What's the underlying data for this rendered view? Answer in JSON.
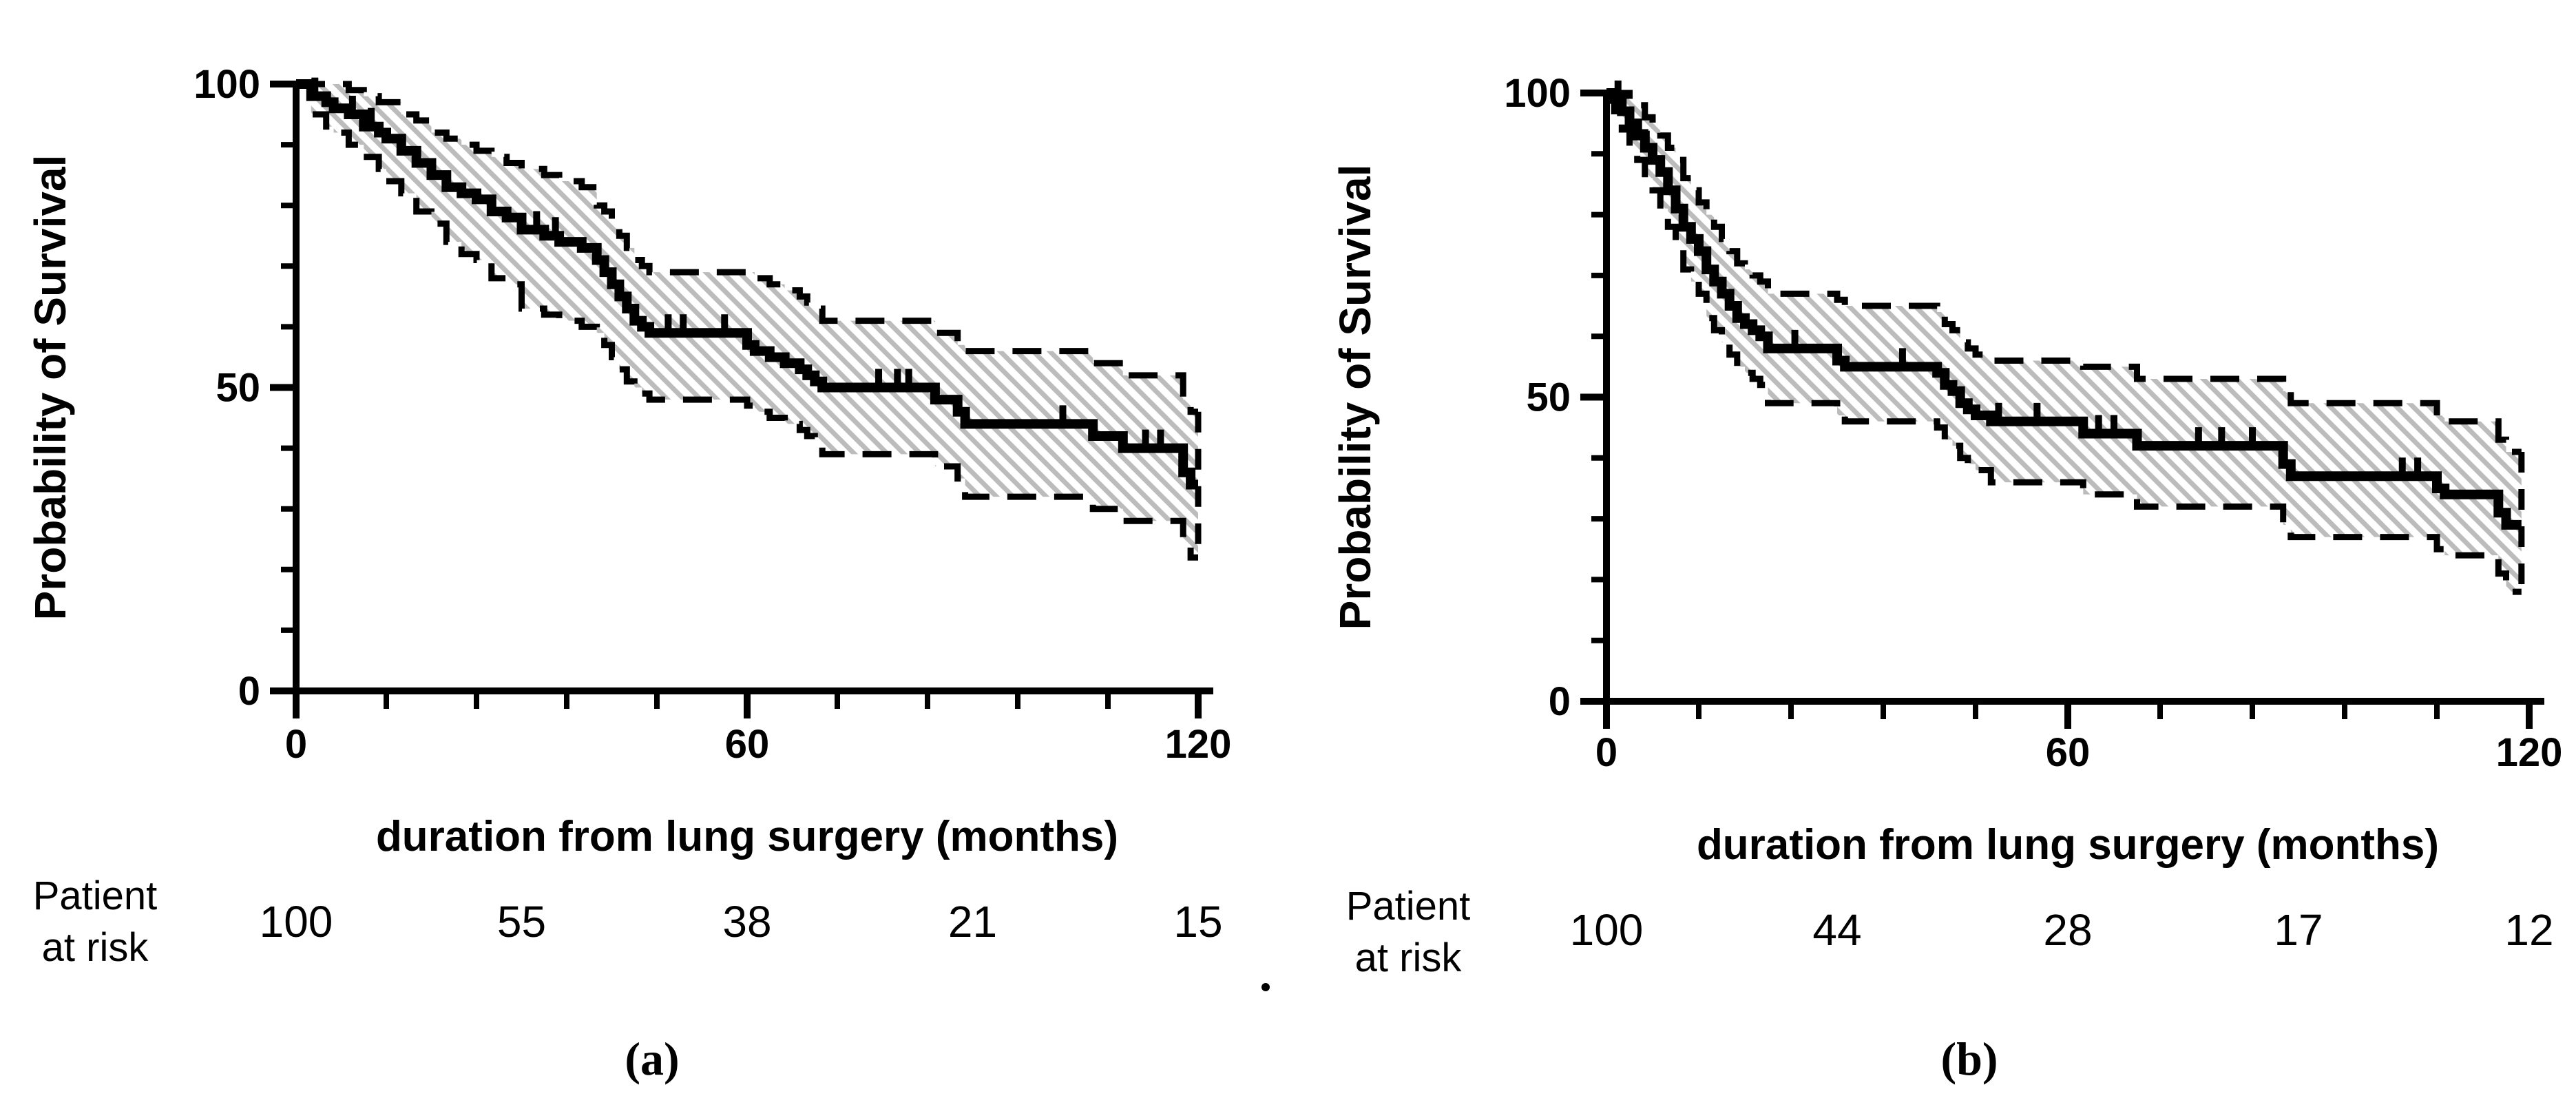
{
  "colors": {
    "ink": "#000000",
    "hatch": "#bcbcbc",
    "background": "#ffffff"
  },
  "stray_mark": ".",
  "chart_data": [
    {
      "type": "line",
      "subtype": "kaplan_meier_step",
      "panel_label": "(a)",
      "xlabel": "duration from lung surgery (months)",
      "ylabel": "Probability of Survival",
      "xlim": [
        0,
        120
      ],
      "ylim": [
        0,
        100
      ],
      "x_ticks": [
        0,
        60,
        120
      ],
      "x_minor_every": 12,
      "y_ticks": [
        0,
        50,
        100
      ],
      "y_minor_every": 10,
      "grid": false,
      "legend": "none",
      "ci_band": "hatched, dashed borders, 95% CI",
      "end_time": 120,
      "steps": [
        [
          0,
          100,
          100,
          100
        ],
        [
          2,
          98,
          95,
          100
        ],
        [
          4,
          97,
          93,
          100
        ],
        [
          5,
          96,
          92,
          100
        ],
        [
          7,
          95,
          90,
          99
        ],
        [
          9,
          93,
          88,
          98
        ],
        [
          11,
          92,
          86,
          97
        ],
        [
          12,
          91,
          84,
          97
        ],
        [
          14,
          89,
          82,
          95
        ],
        [
          16,
          87,
          79,
          94
        ],
        [
          18,
          85,
          77,
          92
        ],
        [
          20,
          83,
          74,
          91
        ],
        [
          22,
          82,
          72,
          90
        ],
        [
          24,
          81,
          71,
          89
        ],
        [
          26,
          79,
          68,
          88
        ],
        [
          28,
          78,
          67,
          87
        ],
        [
          30,
          76,
          63,
          86
        ],
        [
          33,
          75,
          62,
          85
        ],
        [
          35,
          74,
          61,
          84
        ],
        [
          38,
          73,
          60,
          83
        ],
        [
          40,
          71,
          59,
          80
        ],
        [
          41,
          69,
          57,
          79
        ],
        [
          42,
          67,
          55,
          77
        ],
        [
          43,
          65,
          53,
          75
        ],
        [
          44,
          63,
          51,
          73
        ],
        [
          45,
          61,
          50,
          71
        ],
        [
          46,
          60,
          49,
          70
        ],
        [
          47,
          59,
          48,
          69
        ],
        [
          60,
          57,
          47,
          69
        ],
        [
          61,
          56,
          46,
          68
        ],
        [
          63,
          55,
          45,
          67
        ],
        [
          65,
          54,
          44,
          66
        ],
        [
          67,
          53,
          43,
          65
        ],
        [
          68,
          52,
          42,
          64
        ],
        [
          69,
          51,
          41,
          63
        ],
        [
          70,
          50,
          39,
          61
        ],
        [
          85,
          48,
          37,
          59
        ],
        [
          88,
          46,
          35,
          57
        ],
        [
          89,
          44,
          32,
          56
        ],
        [
          106,
          42,
          30,
          54
        ],
        [
          110,
          40,
          28,
          52
        ],
        [
          118,
          36,
          24,
          48
        ],
        [
          119,
          34,
          22,
          46
        ]
      ],
      "censor_times": [
        2.5,
        7.5,
        10,
        32,
        34.5,
        49.5,
        51.5,
        57,
        77.5,
        80,
        81.5,
        102,
        113,
        115
      ],
      "at_risk": {
        "label_lines": [
          "Patient",
          "at risk"
        ],
        "times": [
          0,
          30,
          60,
          90,
          120
        ],
        "counts": [
          100,
          55,
          38,
          21,
          15
        ]
      }
    },
    {
      "type": "line",
      "subtype": "kaplan_meier_step",
      "panel_label": "(b)",
      "xlabel": "duration from lung surgery (months)",
      "ylabel": "Probability of Survival",
      "xlim": [
        0,
        120
      ],
      "ylim": [
        0,
        100
      ],
      "x_ticks": [
        0,
        60,
        120
      ],
      "x_minor_every": 12,
      "y_ticks": [
        0,
        50,
        100
      ],
      "y_minor_every": 10,
      "grid": false,
      "legend": "none",
      "ci_band": "hatched, dashed borders, 95% CI",
      "end_time": 119,
      "steps": [
        [
          0,
          100,
          100,
          100
        ],
        [
          1,
          99,
          97,
          100
        ],
        [
          2,
          97,
          94,
          100
        ],
        [
          3,
          95,
          91,
          99
        ],
        [
          4,
          93,
          89,
          98
        ],
        [
          5,
          91,
          86,
          96
        ],
        [
          6,
          89,
          84,
          95
        ],
        [
          7,
          87,
          81,
          93
        ],
        [
          8,
          84,
          78,
          91
        ],
        [
          9,
          81,
          75,
          89
        ],
        [
          10,
          78,
          71,
          86
        ],
        [
          11,
          76,
          69,
          84
        ],
        [
          12,
          74,
          67,
          82
        ],
        [
          13,
          71,
          63,
          80
        ],
        [
          14,
          69,
          61,
          78
        ],
        [
          15,
          67,
          59,
          76
        ],
        [
          16,
          65,
          57,
          74
        ],
        [
          17,
          63,
          55,
          72
        ],
        [
          18,
          62,
          54,
          71
        ],
        [
          19,
          61,
          53,
          70
        ],
        [
          20,
          60,
          52,
          69
        ],
        [
          21,
          58,
          49,
          67
        ],
        [
          30,
          56,
          47,
          66
        ],
        [
          31,
          55,
          46,
          65
        ],
        [
          43,
          54,
          45,
          64
        ],
        [
          44,
          52,
          43,
          62
        ],
        [
          45,
          51,
          42,
          61
        ],
        [
          46,
          49,
          40,
          59
        ],
        [
          47,
          48,
          39,
          58
        ],
        [
          48,
          47,
          38,
          57
        ],
        [
          50,
          46,
          36,
          56
        ],
        [
          62,
          44,
          34,
          55
        ],
        [
          69,
          42,
          32,
          53
        ],
        [
          88,
          39,
          29,
          51
        ],
        [
          89,
          37,
          27,
          49
        ],
        [
          108,
          35,
          25,
          47
        ],
        [
          109,
          34,
          24,
          46
        ],
        [
          116,
          31,
          21,
          43
        ],
        [
          117,
          29,
          18,
          41
        ]
      ],
      "censor_times": [
        1.5,
        5,
        9,
        24.5,
        38.5,
        51,
        56,
        64,
        66,
        77,
        80,
        84,
        103.5,
        105.5
      ],
      "at_risk": {
        "label_lines": [
          "Patient",
          "at risk"
        ],
        "times": [
          0,
          30,
          60,
          90,
          120
        ],
        "counts": [
          100,
          44,
          28,
          17,
          12
        ]
      }
    }
  ]
}
